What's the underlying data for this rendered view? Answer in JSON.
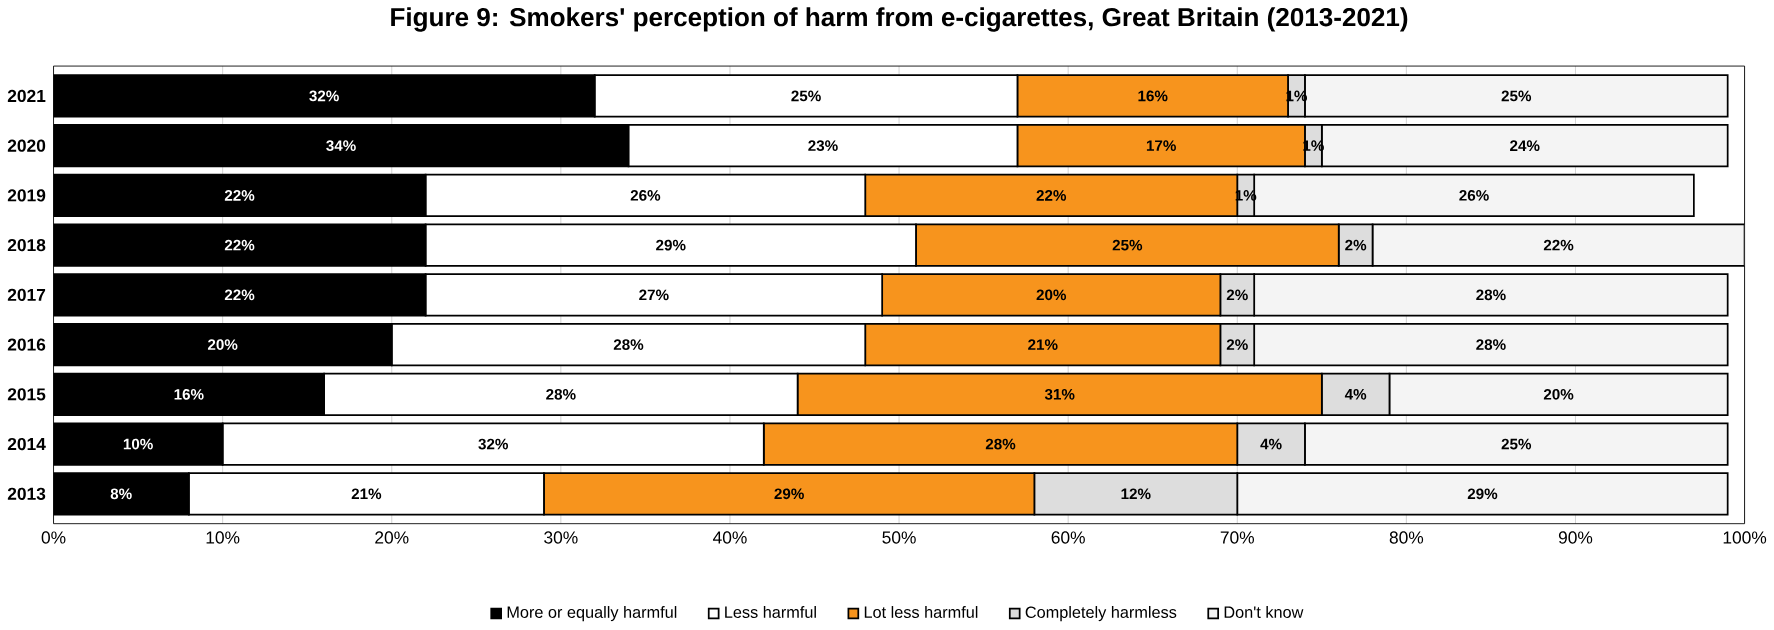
{
  "chart_data": {
    "type": "bar",
    "orientation": "horizontal",
    "stacked": true,
    "title": "Figure 9: Smokers' perception of harm from e-cigarettes, Great Britain (2013-2021)",
    "categories": [
      "2021",
      "2020",
      "2019",
      "2018",
      "2017",
      "2016",
      "2015",
      "2014",
      "2013"
    ],
    "series": [
      {
        "name": "More or equally harmful",
        "color": "#000000",
        "values": [
          32,
          34,
          22,
          22,
          22,
          20,
          16,
          10,
          8
        ],
        "value_labels": [
          "32%",
          "34%",
          "22%",
          "22%",
          "22%",
          "20%",
          "16%",
          "10%",
          "8%"
        ]
      },
      {
        "name": "Less harmful",
        "color": "#ffffff",
        "values": [
          25,
          23,
          26,
          29,
          27,
          28,
          28,
          32,
          21
        ],
        "value_labels": [
          "25%",
          "23%",
          "26%",
          "29%",
          "27%",
          "28%",
          "28%",
          "32%",
          "21%"
        ]
      },
      {
        "name": "Lot less harmful",
        "color": "#f7941d",
        "values": [
          16,
          17,
          22,
          25,
          20,
          21,
          31,
          28,
          29
        ],
        "value_labels": [
          "16%",
          "17%",
          "22%",
          "25%",
          "20%",
          "21%",
          "31%",
          "28%",
          "29%"
        ]
      },
      {
        "name": "Completely harmless",
        "color": "#dddddd",
        "values": [
          1,
          1,
          1,
          2,
          2,
          2,
          4,
          4,
          12
        ],
        "value_labels": [
          "1%",
          "1%",
          "1%",
          "2%",
          "2%",
          "2%",
          "4%",
          "4%",
          "12%"
        ]
      },
      {
        "name": "Don't know",
        "color": "#f4f4f4",
        "values": [
          25,
          24,
          26,
          22,
          28,
          28,
          20,
          25,
          29
        ],
        "value_labels": [
          "25%",
          "24%",
          "26%",
          "22%",
          "28%",
          "28%",
          "20%",
          "25%",
          "29%"
        ]
      }
    ],
    "xlim": [
      0,
      100
    ],
    "xticks": [
      {
        "value": 0,
        "label": "0%"
      },
      {
        "value": 10,
        "label": "10%"
      },
      {
        "value": 20,
        "label": "20%"
      },
      {
        "value": 30,
        "label": "30%"
      },
      {
        "value": 40,
        "label": "40%"
      },
      {
        "value": 50,
        "label": "50%"
      },
      {
        "value": 60,
        "label": "60%"
      },
      {
        "value": 70,
        "label": "70%"
      },
      {
        "value": 80,
        "label": "80%"
      },
      {
        "value": 90,
        "label": "90%"
      },
      {
        "value": 100,
        "label": "100%"
      }
    ],
    "grid": "x",
    "legend": "bottom"
  }
}
